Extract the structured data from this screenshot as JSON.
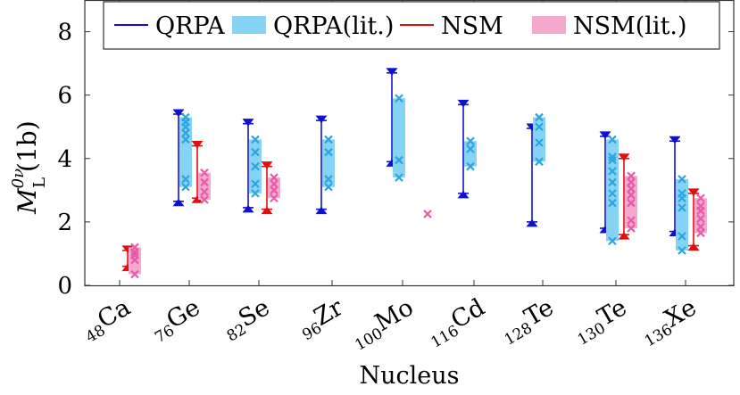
{
  "chart_data": {
    "type": "range",
    "xlabel": "Nucleus",
    "ylabel": "M_L^{0ν}(1b)",
    "ylabel_main": "M",
    "ylabel_sub": "L",
    "ylabel_sup": "0ν",
    "ylabel_paren": "(1b)",
    "ylim": [
      0,
      9
    ],
    "yticks": [
      0,
      2,
      4,
      6,
      8
    ],
    "grid": false,
    "legend_position": "top-right",
    "nuclei": [
      {
        "label": "48Ca",
        "mass": "48",
        "element": "Ca"
      },
      {
        "label": "76Ge",
        "mass": "76",
        "element": "Ge"
      },
      {
        "label": "82Se",
        "mass": "82",
        "element": "Se"
      },
      {
        "label": "96Zr",
        "mass": "96",
        "element": "Zr"
      },
      {
        "label": "100Mo",
        "mass": "100",
        "element": "Mo"
      },
      {
        "label": "116Cd",
        "mass": "116",
        "element": "Cd"
      },
      {
        "label": "128Te",
        "mass": "128",
        "element": "Te"
      },
      {
        "label": "130Te",
        "mass": "130",
        "element": "Te"
      },
      {
        "label": "136Xe",
        "mass": "136",
        "element": "Xe"
      }
    ],
    "series": [
      {
        "name": "QRPA",
        "kind": "range",
        "color": "#1010d0",
        "ranges": [
          null,
          [
            2.65,
            5.4
          ],
          [
            2.45,
            5.1
          ],
          [
            2.4,
            5.2
          ],
          [
            3.9,
            6.7
          ],
          [
            2.9,
            5.7
          ],
          [
            2.0,
            4.95
          ],
          [
            1.8,
            4.7
          ],
          [
            1.7,
            4.55
          ]
        ]
      },
      {
        "name": "QRPA(lit.)",
        "kind": "band",
        "color": "#87d3f3",
        "marker_color": "#2aa5e0",
        "ranges": [
          null,
          [
            3.1,
            5.3
          ],
          [
            2.9,
            4.6
          ],
          [
            3.1,
            4.6
          ],
          [
            3.4,
            5.9
          ],
          [
            3.75,
            4.55
          ],
          [
            3.9,
            5.3
          ],
          [
            1.4,
            4.6
          ],
          [
            1.1,
            3.35
          ]
        ],
        "points": [
          null,
          [
            3.1,
            3.35,
            4.6,
            4.8,
            5.0,
            5.15,
            5.3
          ],
          [
            2.9,
            3.2,
            3.75,
            4.2,
            4.6
          ],
          [
            3.1,
            3.35,
            4.2,
            4.6
          ],
          [
            3.4,
            3.95,
            5.9
          ],
          [
            3.75,
            4.3,
            4.55
          ],
          [
            3.9,
            4.5,
            5.0,
            5.3
          ],
          [
            1.4,
            2.6,
            2.9,
            3.25,
            3.6,
            3.95,
            4.05,
            4.6
          ],
          [
            1.1,
            1.55,
            2.45,
            2.75,
            2.9,
            3.35
          ]
        ]
      },
      {
        "name": "NSM",
        "kind": "range",
        "color": "#e01010",
        "ranges": [
          [
            0.6,
            1.1
          ],
          [
            2.75,
            4.4
          ],
          [
            2.4,
            3.75
          ],
          null,
          null,
          null,
          null,
          [
            1.6,
            4.0
          ],
          [
            1.25,
            2.9
          ]
        ]
      },
      {
        "name": "NSM(lit.)",
        "kind": "band",
        "color": "#f5a9cf",
        "marker_color": "#e85aa8",
        "ranges": [
          [
            0.35,
            1.2
          ],
          [
            2.7,
            3.55
          ],
          [
            2.75,
            3.4
          ],
          null,
          null,
          null,
          null,
          [
            1.8,
            3.45
          ],
          [
            1.65,
            2.75
          ]
        ],
        "points": [
          [
            0.35,
            0.8,
            0.95,
            1.05,
            1.2
          ],
          [
            2.7,
            2.95,
            3.25,
            3.55
          ],
          [
            2.75,
            3.0,
            3.2,
            3.4
          ],
          null,
          [
            2.25
          ],
          null,
          null,
          [
            1.8,
            2.05,
            2.6,
            2.85,
            3.05,
            3.25,
            3.45
          ],
          [
            1.65,
            1.85,
            2.1,
            2.35,
            2.5,
            2.75
          ]
        ]
      }
    ]
  }
}
